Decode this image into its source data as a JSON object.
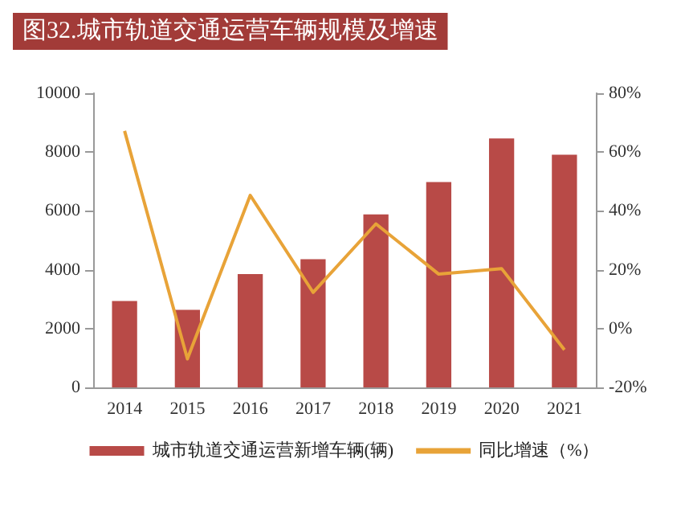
{
  "chart_data": {
    "type": "bar",
    "title": "图32.城市轨道交通运营车辆规模及增速",
    "categories": [
      "2014",
      "2015",
      "2016",
      "2017",
      "2018",
      "2019",
      "2020",
      "2021"
    ],
    "series": [
      {
        "name": "城市轨道交通运营新增车辆(辆)",
        "color": "#b84a47",
        "values": [
          2940,
          2640,
          3850,
          4360,
          5880,
          6980,
          8460,
          7910
        ]
      },
      {
        "name": "同比增速（%）",
        "type": "line",
        "axis": "y2",
        "color": "#e8a338",
        "values": [
          67.2,
          -10.3,
          45.3,
          12.3,
          35.6,
          18.5,
          20.4,
          -7.2
        ]
      }
    ],
    "ylim": [
      0,
      10000
    ],
    "yticks": [
      0,
      2000,
      4000,
      6000,
      8000,
      10000
    ],
    "y2lim": [
      -20,
      80
    ],
    "y2ticks": [
      {
        "value": -20,
        "label": "-20%"
      },
      {
        "value": 0,
        "label": "0%"
      },
      {
        "value": 20,
        "label": "20%"
      },
      {
        "value": 40,
        "label": "40%"
      },
      {
        "value": 60,
        "label": "60%"
      },
      {
        "value": 80,
        "label": "80%"
      }
    ],
    "grid": false,
    "legend": "bottom",
    "marker": "none",
    "line_style": "solid"
  }
}
